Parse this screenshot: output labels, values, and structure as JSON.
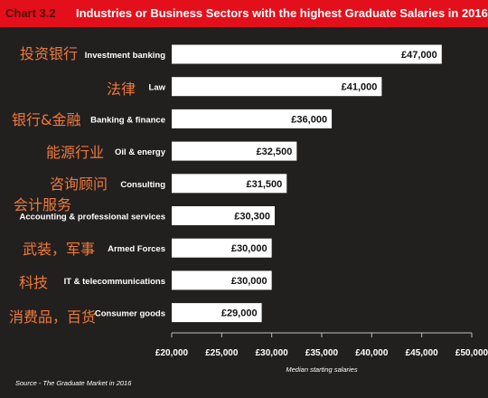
{
  "header": {
    "chart_number": "Chart 3.2",
    "title": "Industries or Business Sectors with the highest Graduate Salaries in 2016"
  },
  "chart_data": {
    "type": "bar",
    "orientation": "horizontal",
    "categories": [
      "Investment banking",
      "Law",
      "Banking & finance",
      "Oil & energy",
      "Consulting",
      "Accounting & professional services",
      "Armed Forces",
      "IT & telecommunications",
      "Consumer goods"
    ],
    "annotations": [
      "投资银行",
      "法律",
      "银行&金融",
      "能源行业",
      "咨询顾问",
      "会计服务",
      "武装，军事",
      "科技",
      "消费品，百货"
    ],
    "values": [
      47000,
      41000,
      36000,
      32500,
      31500,
      30300,
      30000,
      30000,
      29000
    ],
    "value_labels": [
      "£47,000",
      "£41,000",
      "£36,000",
      "£32,500",
      "£31,500",
      "£30,300",
      "£30,000",
      "£30,000",
      "£29,000"
    ],
    "xlim": [
      20000,
      50000
    ],
    "x_ticks": [
      20000,
      25000,
      30000,
      35000,
      40000,
      45000,
      50000
    ],
    "x_tick_labels": [
      "£20,000",
      "£25,000",
      "£30,000",
      "£35,000",
      "£40,000",
      "£45,000",
      "£50,000"
    ],
    "xlabel": "Median starting salaries",
    "grid": false
  },
  "footer": {
    "source": "Source - The Graduate Market in 2016"
  },
  "colors": {
    "background": "#221f1f",
    "header": "#e3101c",
    "bar": "#ffffff",
    "annotation": "#f07a3a",
    "text": "#ffffff"
  }
}
